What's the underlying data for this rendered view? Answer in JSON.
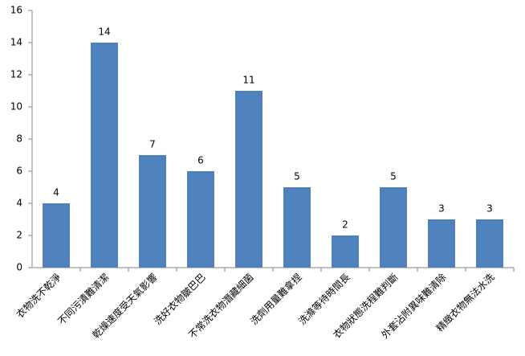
{
  "chart_data": {
    "type": "bar",
    "categories": [
      "衣物洗不乾淨",
      "不同污漬難清潔",
      "乾燥速度受天氣影響",
      "洗好衣物皺巴巴",
      "不常洗衣物潛藏細菌",
      "洗劑用量難拿捏",
      "洗滌等待時間長",
      "衣物狀態洗程難判斷",
      "外套沾附異味難清除",
      "精緻衣物無法水洗"
    ],
    "values": [
      4,
      14,
      7,
      6,
      11,
      5,
      2,
      5,
      3,
      3
    ],
    "color": "#4f81bd",
    "ylim": [
      0,
      16
    ],
    "yticks": [
      0,
      2,
      4,
      6,
      8,
      10,
      12,
      14,
      16
    ],
    "grid": false
  }
}
